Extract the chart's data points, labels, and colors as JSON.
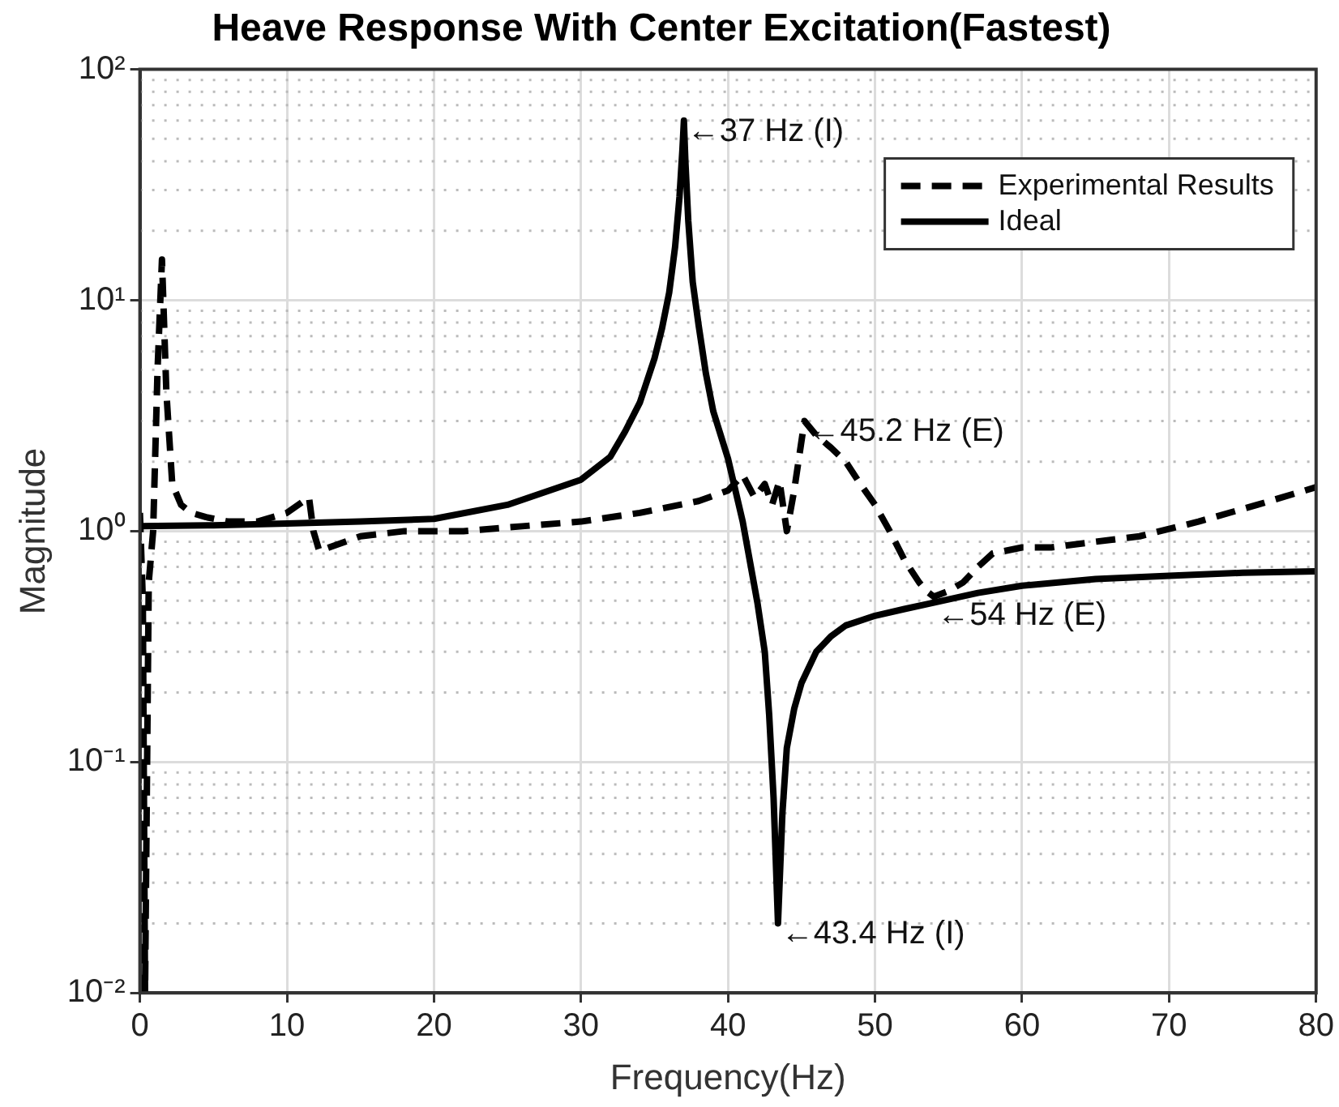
{
  "chart_data": {
    "type": "line",
    "title": "Heave Response With Center Excitation(Fastest)",
    "xlabel": "Frequency(Hz)",
    "ylabel": "Magnitude",
    "log": "y",
    "grid": true,
    "legend": "top right",
    "marker": "none",
    "xlim": [
      0,
      80
    ],
    "xticks": [
      0,
      10,
      20,
      30,
      40,
      50,
      60,
      70,
      80
    ],
    "ylim": [
      0.01,
      100
    ],
    "yticks": [
      {
        "value": 0.01,
        "label": "10⁻²"
      },
      {
        "value": 0.1,
        "label": "10⁻¹"
      },
      {
        "value": 1,
        "label": "10⁰"
      },
      {
        "value": 10,
        "label": "10¹"
      },
      {
        "value": 100,
        "label": "10²"
      }
    ],
    "series": [
      {
        "name": "Experimental Results",
        "color": "#000000",
        "line_style": "dashed",
        "x": [
          0,
          0.2,
          0.35,
          0.6,
          0.9,
          1.2,
          1.5,
          1.8,
          2.2,
          2.8,
          3.5,
          4.5,
          6,
          8,
          10,
          11.5,
          11.8,
          12.2,
          15,
          18,
          22,
          26,
          30,
          34,
          38,
          40,
          41,
          41.8,
          42.5,
          43,
          43.5,
          44,
          44.5,
          45.2,
          46,
          47,
          48,
          49,
          50,
          51,
          52,
          53,
          53.5,
          54,
          55,
          56,
          57,
          58,
          60,
          62,
          65,
          68,
          72,
          76,
          80
        ],
        "values": [
          1.2,
          0.5,
          0.01,
          0.6,
          1.0,
          5,
          15,
          4,
          1.6,
          1.3,
          1.2,
          1.15,
          1.1,
          1.1,
          1.2,
          1.4,
          1.0,
          0.82,
          0.95,
          1.0,
          1.0,
          1.05,
          1.1,
          1.2,
          1.35,
          1.5,
          1.75,
          1.4,
          1.6,
          1.3,
          1.65,
          1.0,
          1.5,
          3.0,
          2.6,
          2.3,
          2.0,
          1.6,
          1.3,
          1.0,
          0.75,
          0.6,
          0.55,
          0.52,
          0.55,
          0.6,
          0.7,
          0.8,
          0.85,
          0.85,
          0.9,
          0.95,
          1.1,
          1.3,
          1.55
        ]
      },
      {
        "name": "Ideal",
        "color": "#000000",
        "line_style": "solid",
        "x": [
          0,
          5,
          10,
          15,
          20,
          25,
          30,
          32,
          33,
          34,
          35,
          35.5,
          36,
          36.4,
          36.7,
          36.9,
          37,
          37.1,
          37.3,
          37.6,
          38,
          38.5,
          39,
          40,
          41,
          42,
          42.5,
          42.8,
          43.1,
          43.4,
          43.7,
          44,
          44.5,
          45,
          46,
          47,
          48,
          50,
          52,
          54,
          57,
          60,
          65,
          70,
          75,
          80
        ],
        "values": [
          1.05,
          1.06,
          1.08,
          1.1,
          1.13,
          1.3,
          1.67,
          2.1,
          2.7,
          3.6,
          5.6,
          7.5,
          10.8,
          17,
          28,
          45,
          60,
          40,
          22,
          12,
          7.8,
          4.8,
          3.3,
          2.06,
          1.1,
          0.49,
          0.3,
          0.16,
          0.07,
          0.02,
          0.06,
          0.115,
          0.17,
          0.22,
          0.3,
          0.35,
          0.39,
          0.43,
          0.46,
          0.49,
          0.54,
          0.58,
          0.62,
          0.64,
          0.66,
          0.67
        ]
      }
    ],
    "annotations": [
      {
        "text": "←37 Hz (I)",
        "x": 37,
        "y": 60
      },
      {
        "text": "←45.2 Hz (E)",
        "x": 45.2,
        "y": 3.0
      },
      {
        "text": "←54 Hz (E)",
        "x": 54,
        "y": 0.48
      },
      {
        "text": "←43.4 Hz (I)",
        "x": 43.4,
        "y": 0.02
      }
    ]
  }
}
